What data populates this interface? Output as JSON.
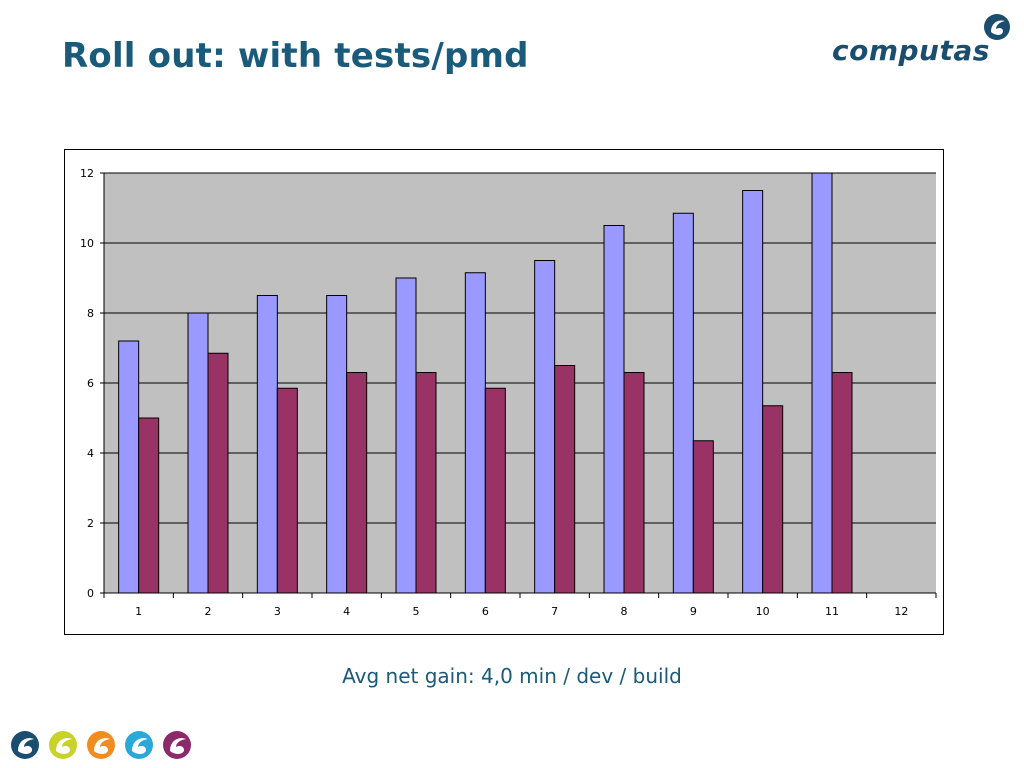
{
  "slide": {
    "title": "Roll out: with tests/pmd",
    "caption": "Avg net gain: 4,0 min / dev / build"
  },
  "logo": {
    "text": "computas",
    "color": "#1a4d6e"
  },
  "footer_icons": [
    {
      "name": "computas-swirl-icon-navy",
      "color": "#1a4d6e"
    },
    {
      "name": "computas-swirl-icon-yellow",
      "color": "#c9d22a"
    },
    {
      "name": "computas-swirl-icon-orange",
      "color": "#f28c1f"
    },
    {
      "name": "computas-swirl-icon-blue",
      "color": "#2aa8d8"
    },
    {
      "name": "computas-swirl-icon-purple",
      "color": "#8a2a6a"
    }
  ],
  "chart_data": {
    "type": "bar",
    "title": "",
    "xlabel": "",
    "ylabel": "",
    "categories": [
      "1",
      "2",
      "3",
      "4",
      "5",
      "6",
      "7",
      "8",
      "9",
      "10",
      "11",
      "12"
    ],
    "series": [
      {
        "color": "#9999ff",
        "values": [
          7.2,
          8.0,
          8.5,
          8.5,
          9.0,
          9.15,
          9.5,
          10.5,
          10.85,
          11.5,
          12.0,
          null
        ]
      },
      {
        "color": "#993366",
        "values": [
          5.0,
          6.85,
          5.85,
          6.3,
          6.3,
          5.85,
          6.5,
          6.3,
          4.35,
          5.35,
          6.3,
          null
        ]
      }
    ],
    "ylim": [
      0,
      12
    ],
    "yticks": [
      "0",
      "2",
      "4",
      "6",
      "8",
      "10",
      "12"
    ],
    "grid": true,
    "legend": "none",
    "plot_background": "#c0c0c0"
  }
}
